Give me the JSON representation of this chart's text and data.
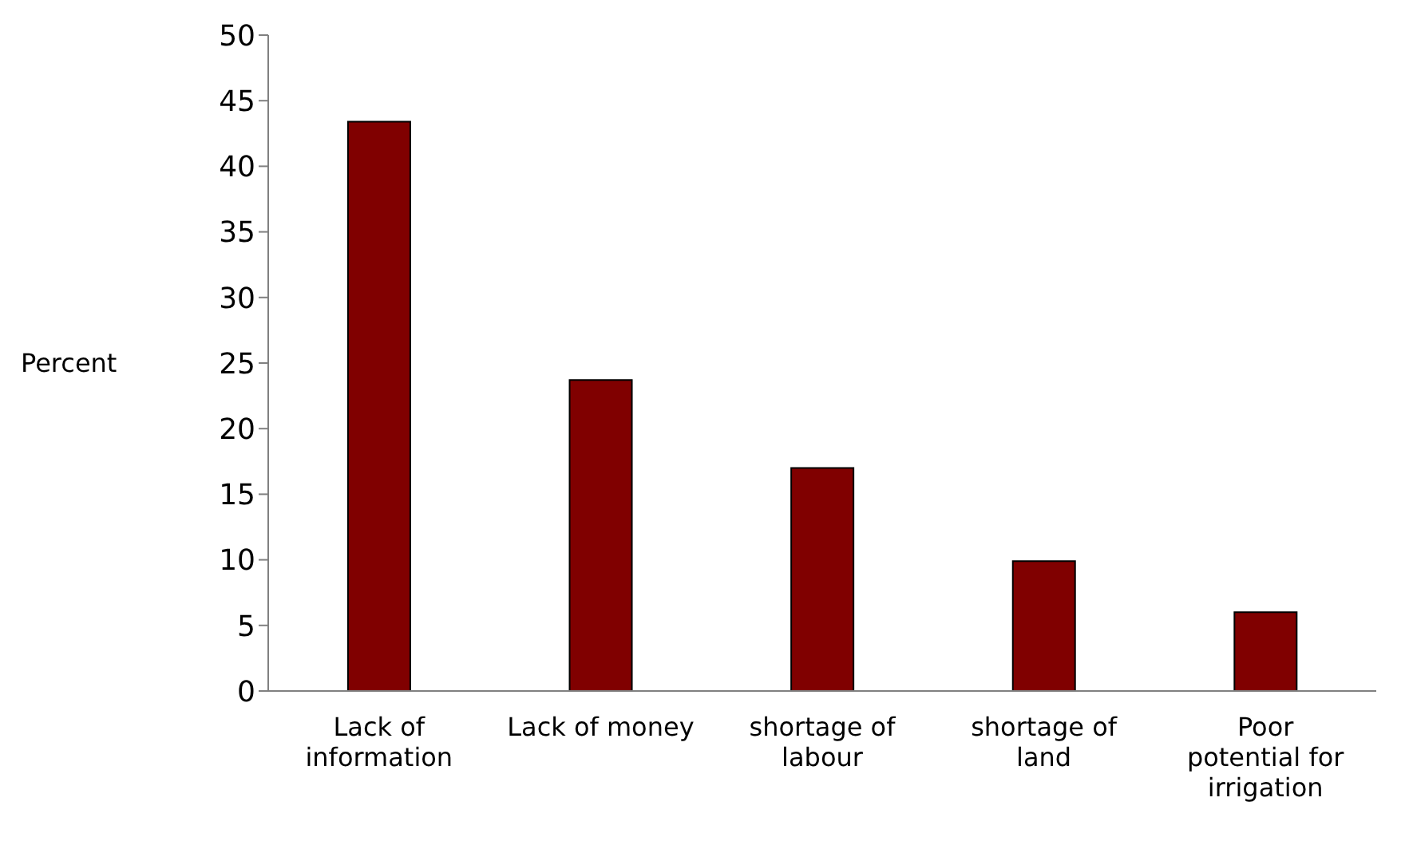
{
  "chart_data": {
    "type": "bar",
    "ylabel": "Percent",
    "categories": [
      "Lack of information",
      "Lack of money",
      "shortage of labour",
      "shortage of land",
      "Poor potential for irrigation"
    ],
    "values": [
      43.4,
      23.7,
      17.0,
      9.9,
      6.0
    ],
    "color": "#800000",
    "ylim": [
      0,
      50
    ],
    "yticks": [
      0,
      5,
      10,
      15,
      20,
      25,
      30,
      35,
      40,
      45,
      50
    ],
    "grid": false,
    "legend": false
  }
}
